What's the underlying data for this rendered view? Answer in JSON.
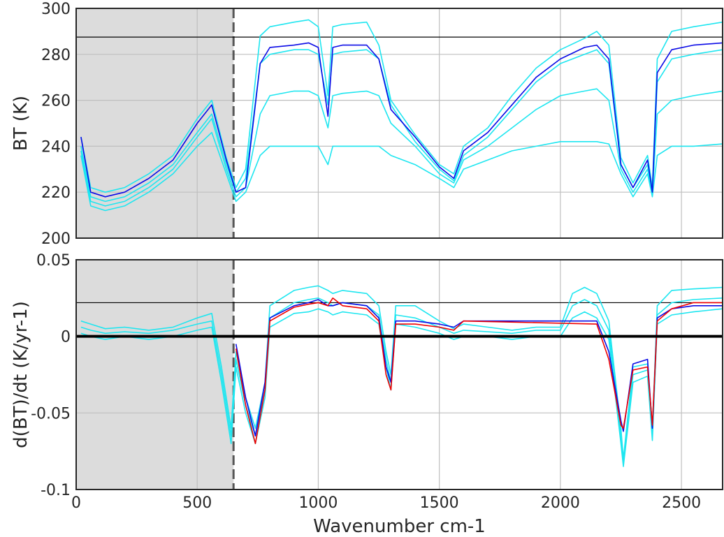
{
  "chart_data": [
    {
      "type": "line",
      "panel": "top",
      "xlabel": "",
      "ylabel": "BT (K)",
      "xlim": [
        0,
        2670
      ],
      "ylim": [
        200,
        300
      ],
      "xticks": [
        0,
        500,
        1000,
        1500,
        2000,
        2500
      ],
      "yticks": [
        200,
        220,
        240,
        260,
        280,
        300
      ],
      "ytick_labels": [
        "200",
        "220",
        "240",
        "260",
        "280",
        "300"
      ],
      "grid": true,
      "shaded_region": {
        "x": [
          0,
          650
        ],
        "color": "#dcdcdc"
      },
      "vertical_dashed_line": 650,
      "horizontal_line": 287.5,
      "colors": {
        "primary": "#0a0ae6",
        "secondary": "#1ee6f0"
      },
      "series": [
        {
          "color": "#1ee6f0",
          "x": [
            20,
            60,
            120,
            200,
            300,
            400,
            500,
            560,
            620,
            660,
            700,
            760,
            800,
            900,
            960,
            1000,
            1040,
            1060,
            1100,
            1200,
            1250,
            1300,
            1400,
            1500,
            1560,
            1600,
            1700,
            1800,
            1900,
            2000,
            2100,
            2150,
            2200,
            2250,
            2300,
            2360,
            2380,
            2400,
            2460,
            2550,
            2670
          ],
          "y": [
            244,
            222,
            220,
            222,
            228,
            236,
            252,
            260,
            235,
            222,
            230,
            288,
            292,
            294,
            295,
            292,
            262,
            292,
            293,
            294,
            284,
            260,
            245,
            232,
            228,
            240,
            248,
            262,
            274,
            282,
            287,
            290,
            284,
            235,
            224,
            236,
            222,
            278,
            290,
            292,
            294
          ]
        },
        {
          "color": "#1ee6f0",
          "x": [
            20,
            60,
            120,
            200,
            300,
            400,
            500,
            560,
            620,
            660,
            700,
            760,
            800,
            900,
            960,
            1000,
            1040,
            1060,
            1100,
            1200,
            1250,
            1300,
            1400,
            1500,
            1560,
            1600,
            1700,
            1800,
            1900,
            2000,
            2100,
            2150,
            2200,
            2250,
            2300,
            2360,
            2380,
            2400,
            2460,
            2550,
            2670
          ],
          "y": [
            240,
            218,
            216,
            218,
            224,
            232,
            246,
            254,
            232,
            220,
            226,
            276,
            280,
            282,
            282,
            280,
            258,
            280,
            281,
            282,
            278,
            258,
            242,
            230,
            225,
            236,
            244,
            256,
            268,
            276,
            280,
            282,
            276,
            232,
            222,
            232,
            220,
            268,
            278,
            280,
            282
          ]
        },
        {
          "color": "#1ee6f0",
          "x": [
            20,
            60,
            120,
            200,
            300,
            400,
            500,
            560,
            620,
            660,
            700,
            760,
            800,
            900,
            960,
            1000,
            1040,
            1060,
            1100,
            1200,
            1250,
            1300,
            1400,
            1500,
            1560,
            1600,
            1700,
            1800,
            1900,
            2000,
            2100,
            2150,
            2200,
            2250,
            2300,
            2360,
            2380,
            2400,
            2460,
            2550,
            2670
          ],
          "y": [
            238,
            216,
            214,
            216,
            222,
            230,
            244,
            252,
            230,
            218,
            222,
            254,
            262,
            264,
            264,
            262,
            248,
            262,
            263,
            264,
            262,
            250,
            240,
            228,
            224,
            234,
            240,
            248,
            256,
            262,
            264,
            265,
            260,
            230,
            220,
            230,
            219,
            254,
            260,
            262,
            264
          ]
        },
        {
          "color": "#1ee6f0",
          "x": [
            20,
            60,
            120,
            200,
            300,
            400,
            500,
            560,
            620,
            660,
            700,
            760,
            800,
            900,
            960,
            1000,
            1040,
            1060,
            1100,
            1200,
            1250,
            1300,
            1400,
            1500,
            1560,
            1600,
            1700,
            1800,
            1900,
            2000,
            2100,
            2150,
            2200,
            2250,
            2300,
            2360,
            2380,
            2400,
            2460,
            2550,
            2670
          ],
          "y": [
            236,
            214,
            212,
            214,
            220,
            228,
            240,
            246,
            228,
            216,
            220,
            236,
            240,
            240,
            240,
            240,
            232,
            240,
            240,
            240,
            240,
            236,
            232,
            226,
            222,
            230,
            234,
            238,
            240,
            242,
            242,
            242,
            241,
            228,
            218,
            228,
            218,
            236,
            240,
            240,
            241
          ]
        },
        {
          "color": "#0a0ae6",
          "x": [
            20,
            60,
            120,
            200,
            300,
            400,
            500,
            560,
            620,
            660,
            700,
            760,
            800,
            900,
            960,
            1000,
            1040,
            1060,
            1100,
            1200,
            1250,
            1300,
            1400,
            1500,
            1560,
            1600,
            1700,
            1800,
            1900,
            2000,
            2100,
            2150,
            2200,
            2250,
            2300,
            2360,
            2380,
            2400,
            2460,
            2550,
            2670
          ],
          "y": [
            244,
            220,
            218,
            220,
            226,
            234,
            250,
            258,
            234,
            220,
            222,
            276,
            283,
            284,
            285,
            283,
            253,
            283,
            284,
            284,
            278,
            256,
            244,
            231,
            226,
            238,
            246,
            258,
            270,
            278,
            283,
            284,
            278,
            232,
            222,
            234,
            220,
            272,
            282,
            284,
            285
          ]
        }
      ]
    },
    {
      "type": "line",
      "panel": "bottom",
      "xlabel": "Wavenumber cm-1",
      "ylabel": "d(BT)/dt (K/yr-1)",
      "xlim": [
        0,
        2670
      ],
      "ylim": [
        -0.1,
        0.05
      ],
      "xticks": [
        0,
        500,
        1000,
        1500,
        2000,
        2500
      ],
      "xtick_labels": [
        "0",
        "500",
        "1000",
        "1500",
        "2000",
        "2500"
      ],
      "yticks": [
        -0.1,
        -0.05,
        0,
        0.05
      ],
      "ytick_labels": [
        "-0.1",
        "-0.05",
        "0",
        "0.05"
      ],
      "grid": true,
      "shaded_region": {
        "x": [
          0,
          650
        ],
        "color": "#dcdcdc"
      },
      "vertical_dashed_line": 650,
      "horizontal_line": 0.022,
      "zero_line": 0,
      "colors": {
        "primary": "#0a0ae6",
        "secondary": "#1ee6f0",
        "highlight": "#f00000"
      },
      "series": [
        {
          "color": "#1ee6f0",
          "x": [
            20,
            60,
            120,
            200,
            300,
            400,
            500,
            560,
            600,
            640,
            660,
            700,
            740,
            780,
            800,
            900,
            960,
            1000,
            1040,
            1060,
            1100,
            1200,
            1250,
            1280,
            1300,
            1320,
            1400,
            1500,
            1560,
            1600,
            1700,
            1800,
            1900,
            2000,
            2050,
            2100,
            2150,
            2200,
            2250,
            2260,
            2300,
            2360,
            2380,
            2400,
            2460,
            2550,
            2670
          ],
          "y": [
            0.01,
            0.008,
            0.005,
            0.006,
            0.004,
            0.006,
            0.012,
            0.015,
            -0.02,
            -0.06,
            -0.01,
            -0.04,
            -0.06,
            -0.03,
            0.02,
            0.03,
            0.032,
            0.033,
            0.03,
            0.028,
            0.03,
            0.028,
            0.02,
            -0.01,
            -0.025,
            0.02,
            0.02,
            0.01,
            0.005,
            0.008,
            0.006,
            0.004,
            0.006,
            0.006,
            0.028,
            0.032,
            0.028,
            0.01,
            -0.06,
            -0.08,
            -0.02,
            -0.018,
            -0.06,
            0.02,
            0.03,
            0.031,
            0.032
          ]
        },
        {
          "color": "#1ee6f0",
          "x": [
            20,
            60,
            120,
            200,
            300,
            400,
            500,
            560,
            600,
            640,
            660,
            700,
            740,
            780,
            800,
            900,
            960,
            1000,
            1040,
            1060,
            1100,
            1200,
            1250,
            1280,
            1300,
            1320,
            1400,
            1500,
            1560,
            1600,
            1700,
            1800,
            1900,
            2000,
            2050,
            2100,
            2150,
            2200,
            2250,
            2260,
            2300,
            2360,
            2380,
            2400,
            2460,
            2550,
            2670
          ],
          "y": [
            0.006,
            0.004,
            0.002,
            0.003,
            0.002,
            0.004,
            0.008,
            0.01,
            -0.025,
            -0.065,
            -0.015,
            -0.045,
            -0.065,
            -0.035,
            0.012,
            0.022,
            0.024,
            0.025,
            0.022,
            0.02,
            0.022,
            0.02,
            0.014,
            -0.015,
            -0.03,
            0.014,
            0.012,
            0.006,
            0.002,
            0.004,
            0.003,
            0.002,
            0.004,
            0.004,
            0.02,
            0.024,
            0.02,
            0.004,
            -0.065,
            -0.082,
            -0.025,
            -0.022,
            -0.065,
            0.014,
            0.022,
            0.024,
            0.025
          ]
        },
        {
          "color": "#1ee6f0",
          "x": [
            20,
            60,
            120,
            200,
            300,
            400,
            500,
            560,
            600,
            640,
            660,
            700,
            740,
            780,
            800,
            900,
            960,
            1000,
            1040,
            1060,
            1100,
            1200,
            1250,
            1280,
            1300,
            1320,
            1400,
            1500,
            1560,
            1600,
            1700,
            1800,
            1900,
            2000,
            2050,
            2100,
            2150,
            2200,
            2250,
            2260,
            2300,
            2360,
            2380,
            2400,
            2460,
            2550,
            2670
          ],
          "y": [
            0.002,
            0.0,
            -0.002,
            0.0,
            -0.002,
            0.0,
            0.004,
            0.006,
            -0.03,
            -0.07,
            -0.02,
            -0.05,
            -0.07,
            -0.04,
            0.006,
            0.015,
            0.016,
            0.018,
            0.016,
            0.014,
            0.016,
            0.014,
            0.008,
            -0.02,
            -0.035,
            0.008,
            0.006,
            0.002,
            -0.002,
            0.0,
            0.0,
            -0.002,
            0.0,
            0.0,
            0.012,
            0.016,
            0.012,
            -0.002,
            -0.07,
            -0.085,
            -0.03,
            -0.026,
            -0.068,
            0.008,
            0.014,
            0.016,
            0.018
          ]
        },
        {
          "color": "#0a0ae6",
          "x": [
            660,
            700,
            740,
            780,
            800,
            900,
            960,
            1000,
            1040,
            1060,
            1100,
            1200,
            1250,
            1280,
            1300,
            1320,
            1400,
            1500,
            1560,
            1600,
            2150,
            2200,
            2250,
            2260,
            2300,
            2360,
            2380,
            2400,
            2460,
            2550,
            2670
          ],
          "y": [
            -0.005,
            -0.04,
            -0.065,
            -0.03,
            0.012,
            0.02,
            0.022,
            0.024,
            0.02,
            0.02,
            0.022,
            0.02,
            0.012,
            -0.02,
            -0.03,
            0.01,
            0.01,
            0.008,
            0.006,
            0.01,
            0.01,
            -0.01,
            -0.055,
            -0.062,
            -0.018,
            -0.015,
            -0.06,
            0.012,
            0.018,
            0.02,
            0.02
          ]
        },
        {
          "color": "#f00000",
          "x": [
            660,
            700,
            740,
            780,
            800,
            900,
            960,
            1000,
            1040,
            1060,
            1100,
            1200,
            1250,
            1280,
            1300,
            1320,
            1400,
            1500,
            1560,
            1600,
            2150,
            2200,
            2250,
            2260,
            2300,
            2360,
            2380,
            2400,
            2460,
            2550,
            2670
          ],
          "y": [
            -0.008,
            -0.045,
            -0.07,
            -0.035,
            0.01,
            0.019,
            0.021,
            0.022,
            0.02,
            0.025,
            0.02,
            0.018,
            0.01,
            -0.025,
            -0.035,
            0.008,
            0.008,
            0.006,
            0.004,
            0.01,
            0.008,
            -0.015,
            -0.058,
            -0.06,
            -0.022,
            -0.02,
            -0.058,
            0.01,
            0.018,
            0.022,
            0.022
          ]
        }
      ]
    }
  ]
}
